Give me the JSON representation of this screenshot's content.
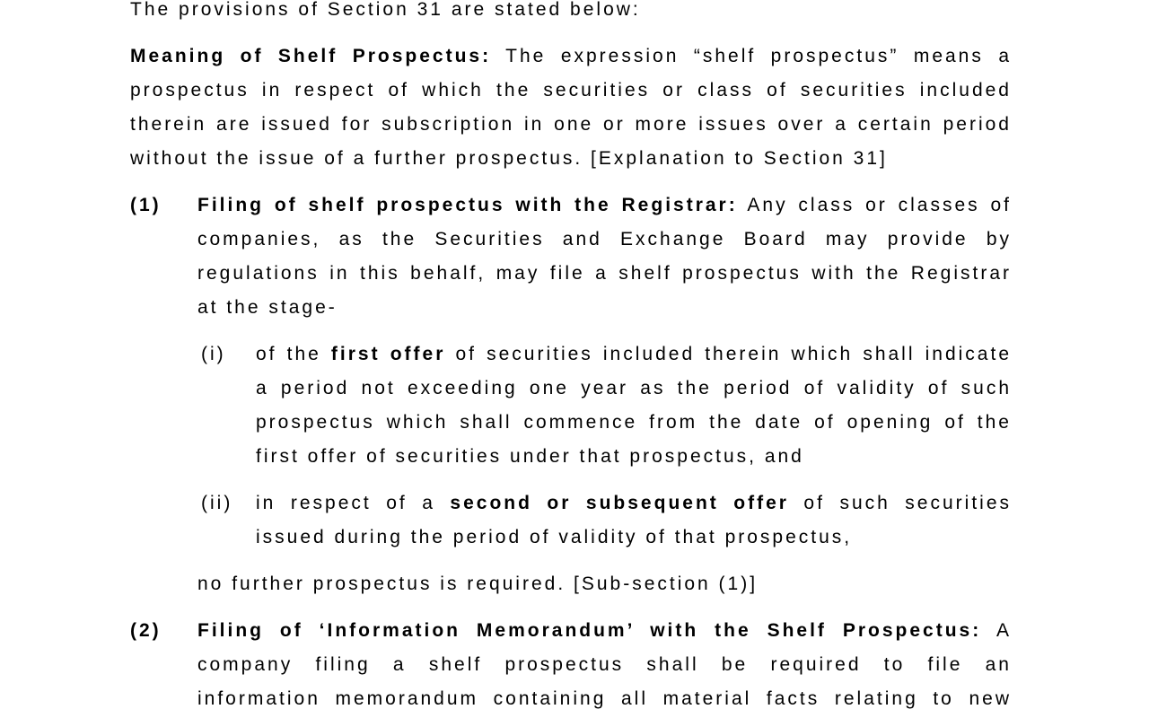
{
  "page": {
    "background_color": "#ffffff",
    "text_color": "#000000"
  },
  "document": {
    "blocks": [
      {
        "name": "intro-paragraph",
        "indent": "none",
        "label": null,
        "label_bold": false,
        "lines": [
          {
            "justify": false,
            "segments": [
              {
                "t": "The provisions of Section 31 are stated below:",
                "b": false
              }
            ]
          }
        ]
      },
      {
        "name": "meaning-paragraph",
        "indent": "none",
        "label": null,
        "label_bold": false,
        "lines": [
          {
            "justify": true,
            "segments": [
              {
                "t": "Meaning of Shelf Prospectus:",
                "b": true
              },
              {
                "t": " The expression “shelf prospectus” means a",
                "b": false
              }
            ]
          },
          {
            "justify": true,
            "segments": [
              {
                "t": "prospectus in respect of which the securities or class of securities included",
                "b": false
              }
            ]
          },
          {
            "justify": true,
            "segments": [
              {
                "t": "therein are issued for subscription in one or more issues over a certain period",
                "b": false
              }
            ]
          },
          {
            "justify": false,
            "segments": [
              {
                "t": "without the issue of a further prospectus. [Explanation to Section 31]",
                "b": false
              }
            ]
          }
        ]
      },
      {
        "name": "item-1",
        "indent": "item",
        "label": "(1)",
        "label_bold": true,
        "lines": [
          {
            "justify": true,
            "segments": [
              {
                "t": "Filing of shelf prospectus with the Registrar:",
                "b": true
              },
              {
                "t": " Any class or classes of",
                "b": false
              }
            ]
          },
          {
            "justify": true,
            "segments": [
              {
                "t": "companies, as the Securities and Exchange Board may provide by",
                "b": false
              }
            ]
          },
          {
            "justify": true,
            "segments": [
              {
                "t": "regulations in this behalf, may file a shelf prospectus with the Registrar",
                "b": false
              }
            ]
          },
          {
            "justify": false,
            "segments": [
              {
                "t": "at the stage-",
                "b": false
              }
            ]
          }
        ]
      },
      {
        "name": "subitem-i",
        "indent": "subitem",
        "label": "(i)",
        "label_bold": false,
        "lines": [
          {
            "justify": true,
            "segments": [
              {
                "t": "of the ",
                "b": false
              },
              {
                "t": "first offer",
                "b": true
              },
              {
                "t": " of securities included therein which shall indicate",
                "b": false
              }
            ]
          },
          {
            "justify": true,
            "segments": [
              {
                "t": "a period not exceeding one year as the period of validity of such",
                "b": false
              }
            ]
          },
          {
            "justify": true,
            "segments": [
              {
                "t": "prospectus which shall commence from the date of opening of the",
                "b": false
              }
            ]
          },
          {
            "justify": false,
            "segments": [
              {
                "t": "first offer of securities under that prospectus, and",
                "b": false
              }
            ]
          }
        ]
      },
      {
        "name": "subitem-ii",
        "indent": "subitem",
        "label": "(ii)",
        "label_bold": false,
        "lines": [
          {
            "justify": true,
            "segments": [
              {
                "t": "in respect of a ",
                "b": false
              },
              {
                "t": "second or subsequent offer",
                "b": true
              },
              {
                "t": " of such securities",
                "b": false
              }
            ]
          },
          {
            "justify": false,
            "segments": [
              {
                "t": "issued during the period of validity of that prospectus,",
                "b": false
              }
            ]
          }
        ]
      },
      {
        "name": "item-1-continuation",
        "indent": "item",
        "label": null,
        "label_bold": false,
        "lines": [
          {
            "justify": false,
            "segments": [
              {
                "t": "no further prospectus is required. [Sub-section (1)]",
                "b": false
              }
            ]
          }
        ]
      },
      {
        "name": "item-2",
        "indent": "item",
        "label": "(2)",
        "label_bold": true,
        "lines": [
          {
            "justify": true,
            "segments": [
              {
                "t": "Filing of ‘Information Memorandum’ with the Shelf Prospectus:",
                "b": true
              },
              {
                "t": " A",
                "b": false
              }
            ]
          },
          {
            "justify": true,
            "segments": [
              {
                "t": "company filing a shelf prospectus shall be required to file an",
                "b": false
              }
            ]
          },
          {
            "justify": true,
            "segments": [
              {
                "t": "information memorandum containing all material facts relating to new",
                "b": false
              }
            ]
          }
        ]
      }
    ]
  }
}
